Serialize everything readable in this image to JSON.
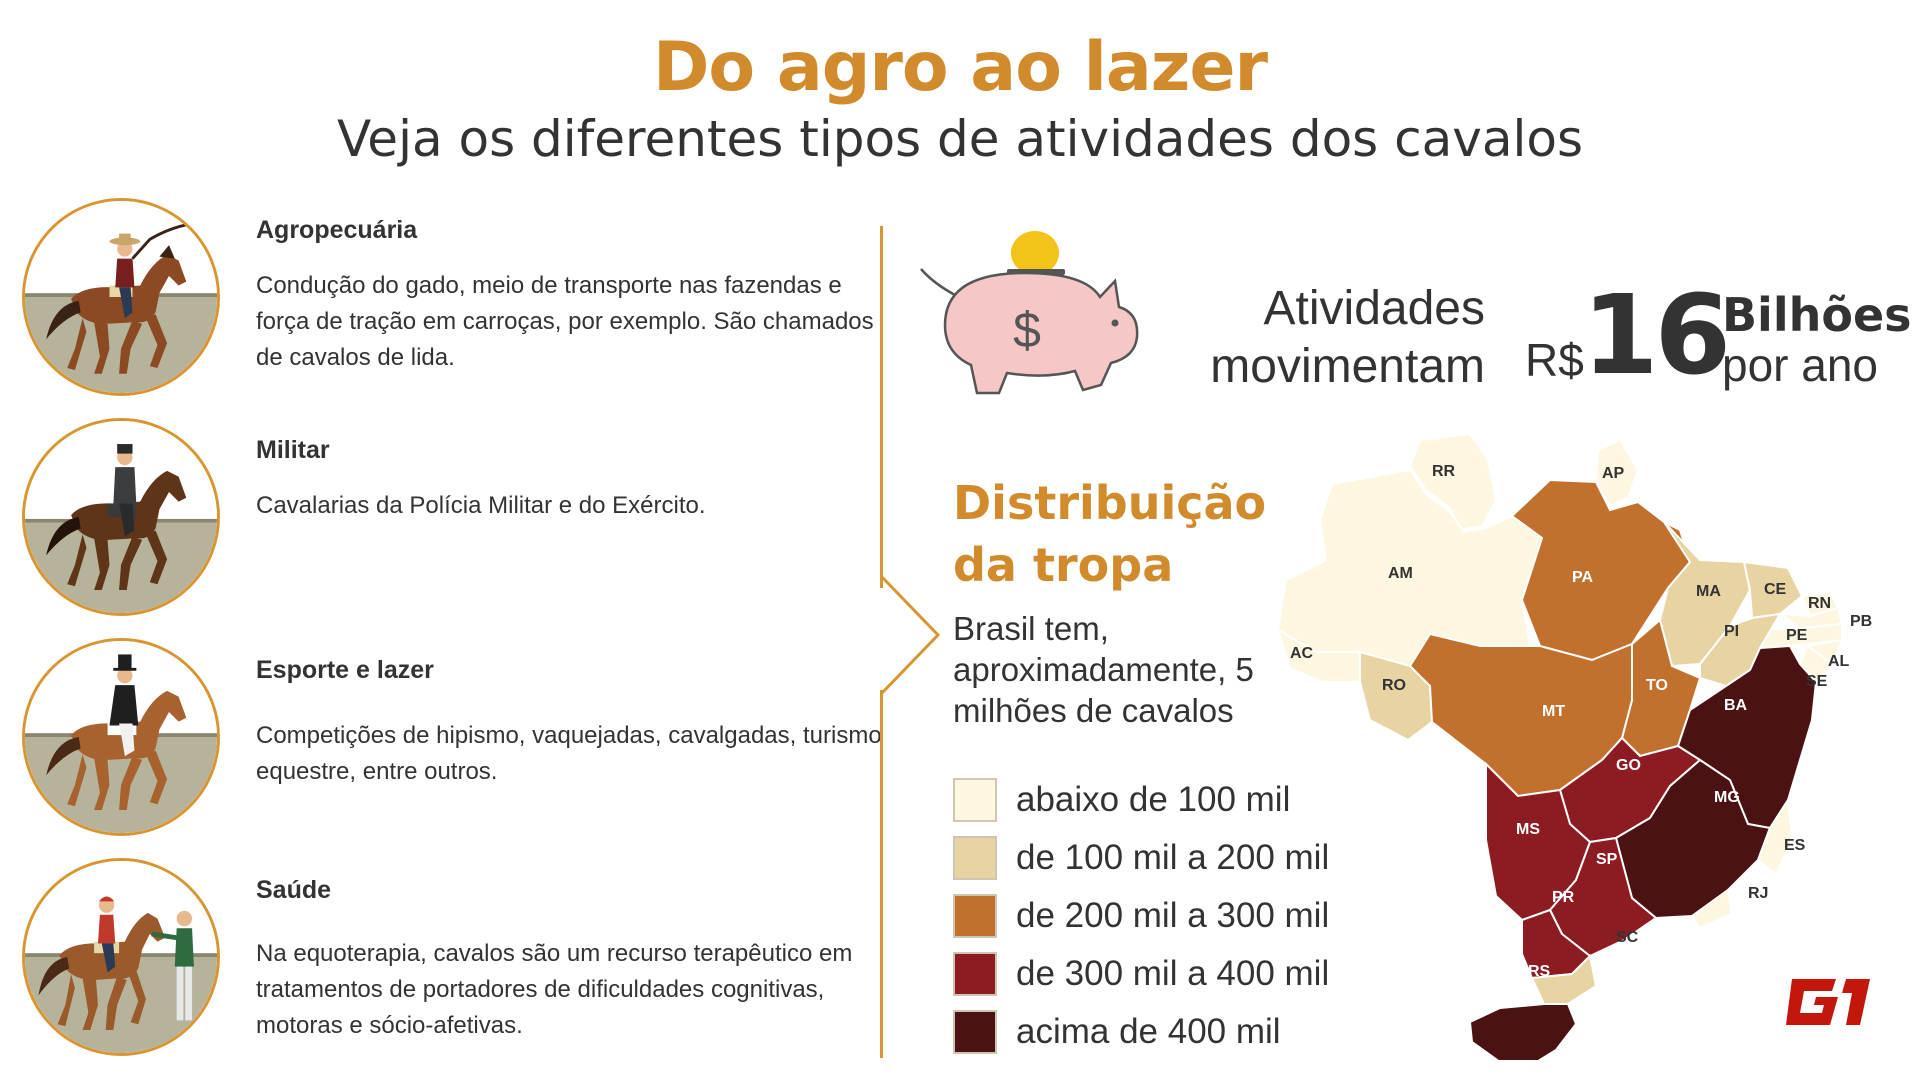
{
  "header": {
    "title": "Do agro ao lazer",
    "subtitle": "Veja os diferentes tipos de atividades dos cavalos"
  },
  "activities": [
    {
      "name": "Agropecuária",
      "description": "Condução do gado, meio de transporte nas fazendas e força de tração em carroças, por exemplo. São chamados de cavalos de lida.",
      "icon": "cowboy-rider-icon"
    },
    {
      "name": "Militar",
      "description": "Cavalarias da Polícia Militar e do Exército.",
      "icon": "military-rider-icon"
    },
    {
      "name": "Esporte e lazer",
      "description": "Competições de hipismo, vaquejadas, cavalgadas, turismo equestre,  entre outros.",
      "icon": "equestrian-rider-icon"
    },
    {
      "name": "Saúde",
      "description": "Na equoterapia, cavalos são um recurso terapêutico em tratamentos de portadores de dificuldades cognitivas, motoras e sócio-afetivas.",
      "icon": "therapy-rider-icon"
    }
  ],
  "stat": {
    "label": "Atividades movimentam",
    "currency": "R$",
    "value": "16",
    "unit_bold": "Bilhões",
    "unit_rest": "por ano",
    "icon": "piggy-bank-icon"
  },
  "distribution": {
    "title": "Distribuição da tropa",
    "text": "Brasil tem, aproximadamente, 5 milhões de cavalos",
    "legend": [
      {
        "label": "abaixo de 100 mil",
        "color": "#fdf6e0"
      },
      {
        "label": "de 100 mil a 200 mil",
        "color": "#e8d3a2"
      },
      {
        "label": "de 200 mil a 300 mil",
        "color": "#c2702d"
      },
      {
        "label": "de 300 mil a 400 mil",
        "color": "#8c1c21"
      },
      {
        "label": "acima de 400 mil",
        "color": "#4a1212"
      }
    ]
  },
  "map": {
    "states": [
      "RR",
      "AP",
      "AM",
      "PA",
      "MA",
      "CE",
      "RN",
      "PB",
      "PE",
      "AL",
      "SE",
      "PI",
      "AC",
      "RO",
      "TO",
      "BA",
      "MT",
      "GO",
      "MG",
      "ES",
      "MS",
      "SP",
      "RJ",
      "PR",
      "SC",
      "RS"
    ]
  },
  "brand": {
    "logo": "G1"
  }
}
